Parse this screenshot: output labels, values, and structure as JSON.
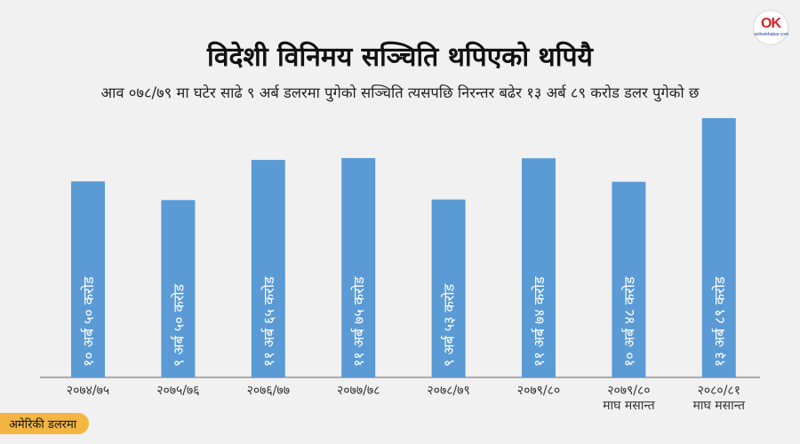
{
  "header": {
    "title": "विदेशी विनिमय सञ्चिति थपिएको थपियै",
    "subtitle": "आव ०७८/७९ मा घटेर साढे ९ अर्ब डलरमा पुगेको सञ्चिति त्यसपछि निरन्तर बढेर १३ अर्ब ८९ करोड डलर पुगेको छ"
  },
  "logo": {
    "mark": "OK",
    "wordmark": "onlinekhabar.com"
  },
  "unit_label": "अमेरिकी डलरमा",
  "colors": {
    "bar": "#5b9bd5",
    "background": "#f1f1f1",
    "badge": "#f4b642",
    "axis": "#666666"
  },
  "chart_data": {
    "type": "bar",
    "title": "विदेशी विनिमय सञ्चिति थपिएको थपियै",
    "categories": [
      [
        "२०७४/७५"
      ],
      [
        "२०७५/७६"
      ],
      [
        "२०७६/७७"
      ],
      [
        "२०७७/७८"
      ],
      [
        "२०७८/७९"
      ],
      [
        "२०७९/८०"
      ],
      [
        "२०७९/८०",
        "माघ मसान्त"
      ],
      [
        "२०८०/८१",
        "माघ मसान्त"
      ]
    ],
    "values": [
      10.5,
      9.5,
      11.65,
      11.75,
      9.53,
      11.74,
      10.48,
      13.89
    ],
    "data_labels": [
      "१० अर्ब ५० करोड",
      "९ अर्ब ५० करोड",
      "११ अर्ब ६५ करोड",
      "११ अर्ब ७५ करोड",
      "९ अर्ब ५३ करोड",
      "११ अर्ब ७४ करोड",
      "१० अर्ब ४८ करोड",
      "१३ अर्ब ८९ करोड"
    ],
    "unit": "अमेरिकी डलरमा",
    "ylim": [
      0,
      13.89
    ],
    "grid": false,
    "legend": "none"
  }
}
